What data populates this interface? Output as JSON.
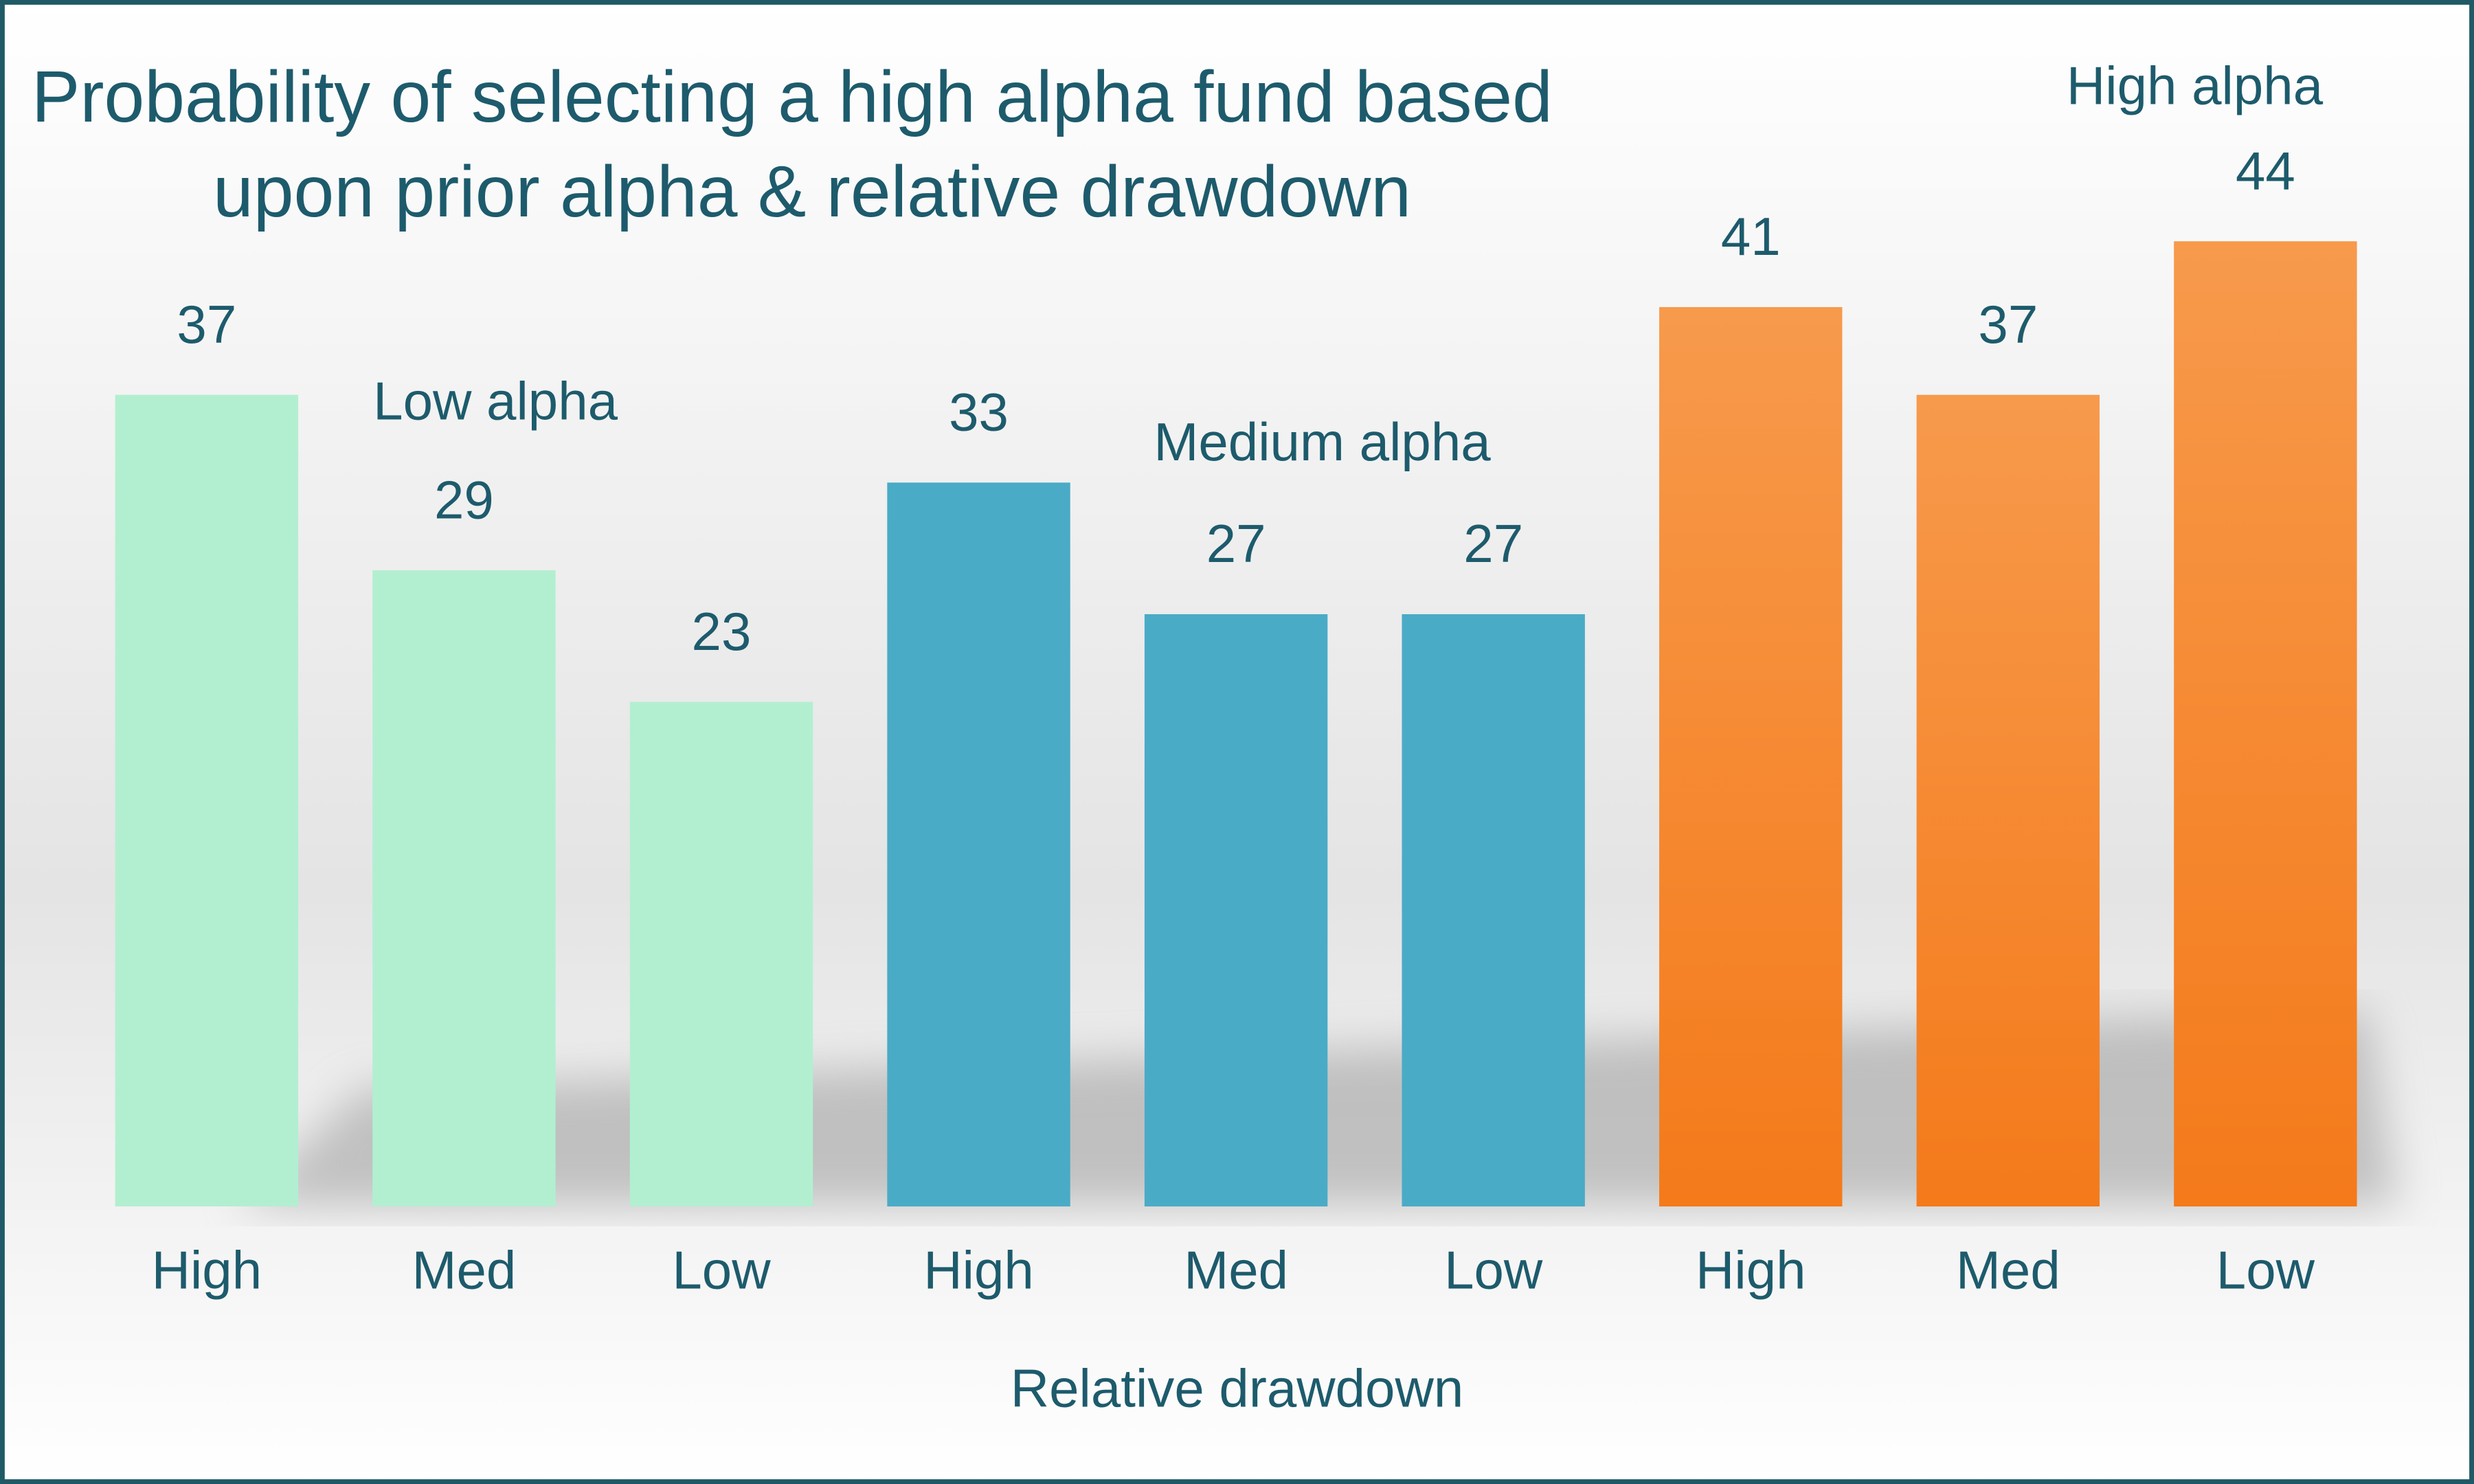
{
  "chart_data": {
    "type": "bar",
    "title": [
      "Probability of selecting a high alpha fund based",
      "upon prior alpha & relative drawdown"
    ],
    "x_label": "Relative drawdown",
    "categories": [
      "High",
      "Med",
      "Low"
    ],
    "series": [
      {
        "name": "Low alpha",
        "color": "#b2efd0",
        "values": [
          37,
          29,
          23
        ]
      },
      {
        "name": "Medium alpha",
        "color": "#4aabc6",
        "values": [
          33,
          27,
          27
        ]
      },
      {
        "name": "High alpha",
        "color": "#f47a1a",
        "values": [
          41,
          37,
          44
        ]
      }
    ]
  }
}
